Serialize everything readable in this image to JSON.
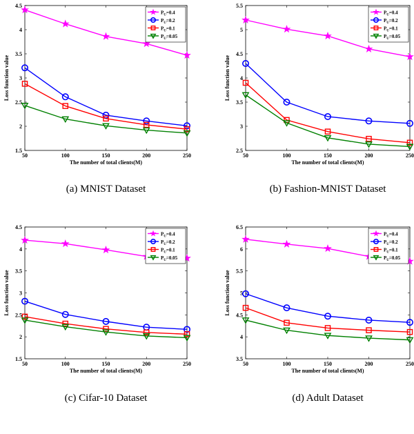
{
  "chart_data": [
    {
      "type": "line",
      "caption": "(a) MNIST Dataset",
      "xlabel": "The number of total clients(M)",
      "ylabel": "Loss function value",
      "x": [
        50,
        100,
        150,
        200,
        250
      ],
      "xlim": [
        50,
        250
      ],
      "ylim": [
        1.5,
        4.5
      ],
      "yticks": [
        1.5,
        2,
        2.5,
        3,
        3.5,
        4,
        4.5
      ],
      "series": [
        {
          "name": "P_U=0.4",
          "color": "#ff00ff",
          "marker": "star",
          "values": [
            4.41,
            4.12,
            3.86,
            3.71,
            3.47
          ]
        },
        {
          "name": "P_U=0.2",
          "color": "#0000ff",
          "marker": "circle",
          "values": [
            3.21,
            2.61,
            2.23,
            2.11,
            2.01
          ]
        },
        {
          "name": "P_U=0.1",
          "color": "#ff0000",
          "marker": "square",
          "values": [
            2.88,
            2.42,
            2.16,
            2.03,
            1.94
          ]
        },
        {
          "name": "P_U=0.05",
          "color": "#008000",
          "marker": "triangle-down",
          "values": [
            2.43,
            2.15,
            2.01,
            1.92,
            1.86
          ]
        }
      ]
    },
    {
      "type": "line",
      "caption": "(b) Fashion-MNIST Dataset",
      "xlabel": "The number of total clients(M)",
      "ylabel": "Loss function value",
      "x": [
        50,
        100,
        150,
        200,
        250
      ],
      "xlim": [
        50,
        250
      ],
      "ylim": [
        2.5,
        5.5
      ],
      "yticks": [
        2.5,
        3,
        3.5,
        4,
        4.5,
        5,
        5.5
      ],
      "series": [
        {
          "name": "P_U=0.4",
          "color": "#ff00ff",
          "marker": "star",
          "values": [
            5.2,
            5.01,
            4.87,
            4.6,
            4.44
          ]
        },
        {
          "name": "P_U=0.2",
          "color": "#0000ff",
          "marker": "circle",
          "values": [
            4.3,
            3.5,
            3.2,
            3.11,
            3.06
          ]
        },
        {
          "name": "P_U=0.1",
          "color": "#ff0000",
          "marker": "square",
          "values": [
            3.9,
            3.13,
            2.89,
            2.74,
            2.66
          ]
        },
        {
          "name": "P_U=0.05",
          "color": "#008000",
          "marker": "triangle-down",
          "values": [
            3.65,
            3.07,
            2.76,
            2.63,
            2.58
          ]
        }
      ]
    },
    {
      "type": "line",
      "caption": "(c) Cifar-10 Dataset",
      "xlabel": "The number of total clients(M)",
      "ylabel": "Loss function value",
      "x": [
        50,
        100,
        150,
        200,
        250
      ],
      "xlim": [
        50,
        250
      ],
      "ylim": [
        1.5,
        4.5
      ],
      "yticks": [
        1.5,
        2,
        2.5,
        3,
        3.5,
        4,
        4.5
      ],
      "series": [
        {
          "name": "P_U=0.4",
          "color": "#ff00ff",
          "marker": "star",
          "values": [
            4.2,
            4.12,
            3.98,
            3.83,
            3.79
          ]
        },
        {
          "name": "P_U=0.2",
          "color": "#0000ff",
          "marker": "circle",
          "values": [
            2.81,
            2.51,
            2.35,
            2.22,
            2.17
          ]
        },
        {
          "name": "P_U=0.1",
          "color": "#ff0000",
          "marker": "square",
          "values": [
            2.46,
            2.3,
            2.18,
            2.1,
            2.06
          ]
        },
        {
          "name": "P_U=0.05",
          "color": "#008000",
          "marker": "triangle-down",
          "values": [
            2.38,
            2.23,
            2.11,
            2.02,
            1.98
          ]
        }
      ]
    },
    {
      "type": "line",
      "caption": "(d) Adult Dataset",
      "xlabel": "The number of total clients(M)",
      "ylabel": "Loss function value",
      "x": [
        50,
        100,
        150,
        200,
        250
      ],
      "xlim": [
        50,
        250
      ],
      "ylim": [
        3.5,
        6.5
      ],
      "yticks": [
        3.5,
        4,
        4.5,
        5,
        5.5,
        6,
        6.5
      ],
      "series": [
        {
          "name": "P_U=0.4",
          "color": "#ff00ff",
          "marker": "star",
          "values": [
            6.22,
            6.11,
            6.01,
            5.83,
            5.72
          ]
        },
        {
          "name": "P_U=0.2",
          "color": "#0000ff",
          "marker": "circle",
          "values": [
            4.98,
            4.66,
            4.47,
            4.38,
            4.33
          ]
        },
        {
          "name": "P_U=0.1",
          "color": "#ff0000",
          "marker": "square",
          "values": [
            4.66,
            4.32,
            4.2,
            4.15,
            4.11
          ]
        },
        {
          "name": "P_U=0.05",
          "color": "#008000",
          "marker": "triangle-down",
          "values": [
            4.38,
            4.15,
            4.03,
            3.97,
            3.93
          ]
        }
      ]
    }
  ]
}
